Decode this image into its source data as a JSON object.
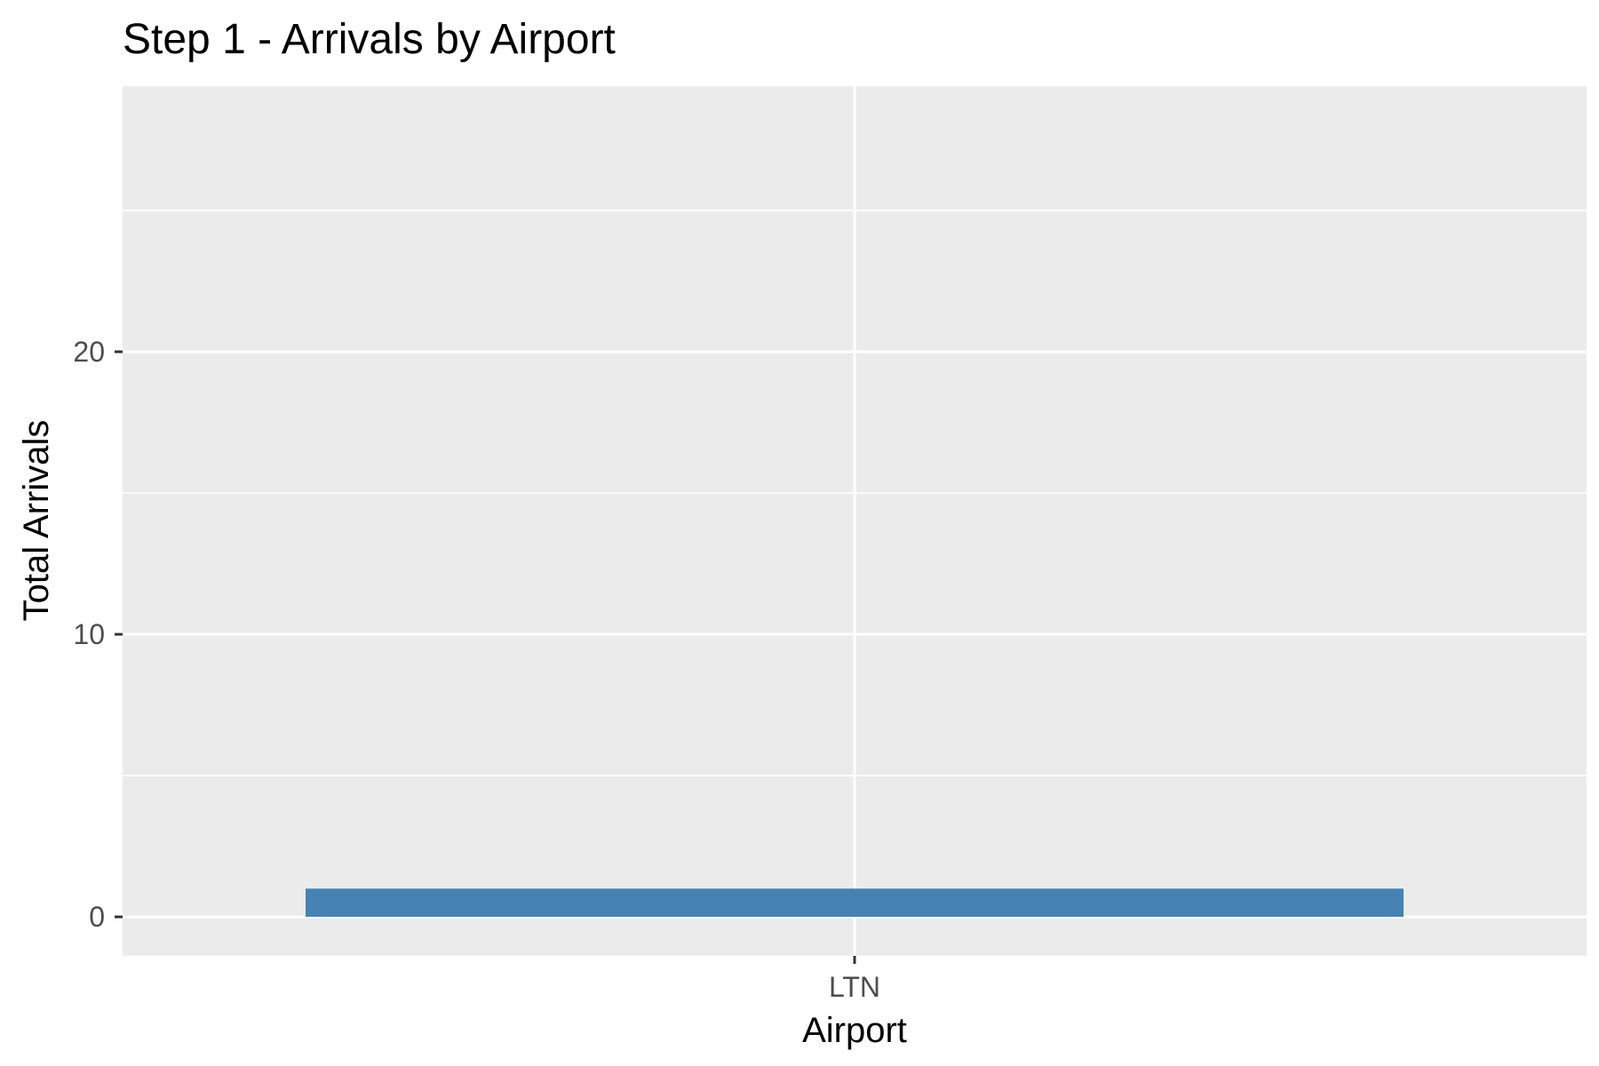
{
  "chart_data": {
    "type": "bar",
    "title": "Step 1 - Arrivals by Airport",
    "xlabel": "Airport",
    "ylabel": "Total Arrivals",
    "categories": [
      "LTN"
    ],
    "values": [
      1
    ],
    "ylim": [
      -1.38,
      29.4
    ],
    "y_ticks": [
      0,
      10,
      20
    ],
    "y_tick_labels": [
      "0",
      "10",
      "20"
    ],
    "grid": true,
    "legend": "none",
    "colors": {
      "bar": "#4682b4",
      "panel_background": "#ebebeb",
      "grid": "#ffffff",
      "tick_text": "#4d4d4d",
      "axis_title": "#000000"
    }
  }
}
